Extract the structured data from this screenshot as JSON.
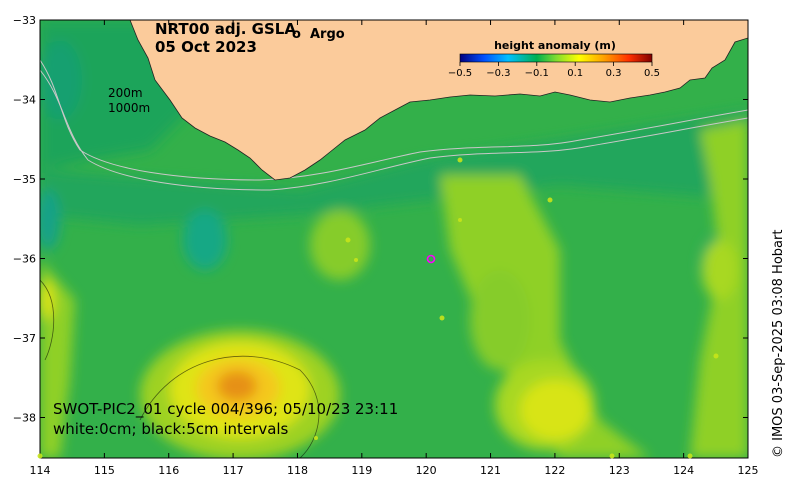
{
  "map": {
    "title_line1": "NRT00 adj. GSLA",
    "title_line2": "05 Oct 2023",
    "argo_marker": "o",
    "argo_label": "Argo",
    "depth_label_200": "200m",
    "depth_label_1000": "1000m",
    "swot_annotation": "SWOT-PIC2_01 cycle 004/396; 05/10/23 23:11",
    "contour_annotation": "white:0cm; black:5cm intervals",
    "credit": "© IMOS 03-Sep-2025 03:08 Hobart",
    "lon_ticks": [
      "114",
      "115",
      "116",
      "117",
      "118",
      "119",
      "120",
      "121",
      "122",
      "123",
      "124",
      "125"
    ],
    "lat_ticks": [
      "−33",
      "−34",
      "−35",
      "−36",
      "−37",
      "−38"
    ],
    "colors": {
      "land": "#fbcb9b",
      "argo": "#ff00ff",
      "ocean_green": "#1faa55",
      "high_anomaly": "#e69016",
      "shelf_contour": "#c8c8c8"
    }
  },
  "colorbar": {
    "title": "height anomaly (m)",
    "ticks": [
      "−0.5",
      "−0.3",
      "−0.1",
      "0.1",
      "0.3",
      "0.5"
    ],
    "range": [
      -0.5,
      0.5
    ],
    "stops": [
      "#000080",
      "#0050ff",
      "#00c0ff",
      "#00b050",
      "#7fdc30",
      "#ffff00",
      "#ffa000",
      "#ff3000",
      "#800000"
    ]
  }
}
